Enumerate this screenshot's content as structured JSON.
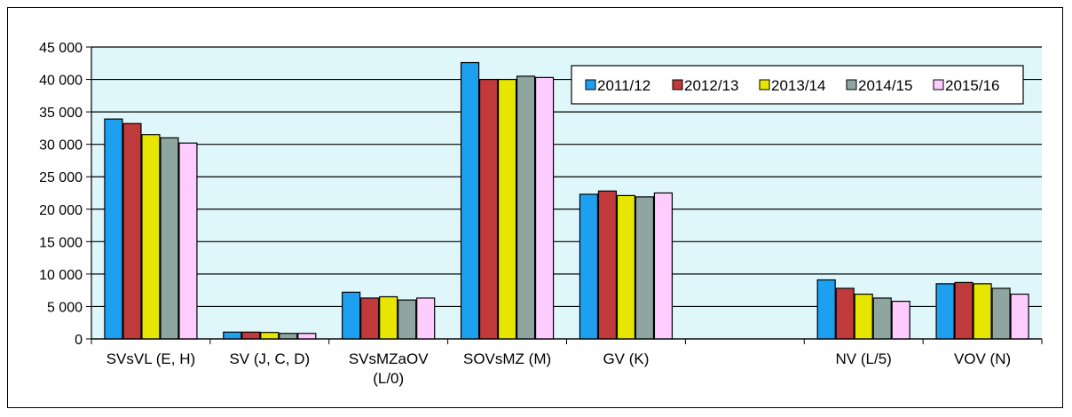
{
  "chart_data": {
    "type": "bar",
    "title": "",
    "xlabel": "",
    "ylabel": "",
    "ylim": [
      0,
      45000
    ],
    "yticks": [
      "0",
      "5 000",
      "10 000",
      "15 000",
      "20 000",
      "25 000",
      "30 000",
      "35 000",
      "40 000",
      "45 000"
    ],
    "ytick_values": [
      0,
      5000,
      10000,
      15000,
      20000,
      25000,
      30000,
      35000,
      40000,
      45000
    ],
    "grid": true,
    "legend_position": "top-right",
    "categories": [
      [
        "SVsVL (E, H)"
      ],
      [
        "SV (J, C, D)"
      ],
      [
        "SVsMZaOV",
        "(L/0)"
      ],
      [
        "SOVsMZ (M)"
      ],
      [
        "GV (K)"
      ],
      [
        ""
      ],
      [
        "NV (L/5)"
      ],
      [
        "VOV (N)"
      ]
    ],
    "series": [
      {
        "name": "2011/12",
        "color": "#1ea0f0",
        "values": [
          33900,
          1050,
          7200,
          42600,
          22300,
          0,
          9100,
          8500
        ]
      },
      {
        "name": "2012/13",
        "color": "#c0393b",
        "values": [
          33200,
          1050,
          6300,
          40000,
          22800,
          0,
          7800,
          8700
        ]
      },
      {
        "name": "2013/14",
        "color": "#e6e600",
        "values": [
          31500,
          1000,
          6500,
          40000,
          22100,
          0,
          6900,
          8500
        ]
      },
      {
        "name": "2014/15",
        "color": "#8fa6a0",
        "values": [
          31000,
          850,
          6000,
          40500,
          21900,
          0,
          6300,
          7800
        ]
      },
      {
        "name": "2015/16",
        "color": "#ffccff",
        "values": [
          30200,
          850,
          6300,
          40300,
          22500,
          0,
          5800,
          6900
        ]
      }
    ],
    "plot_background": "#dff7fb"
  }
}
